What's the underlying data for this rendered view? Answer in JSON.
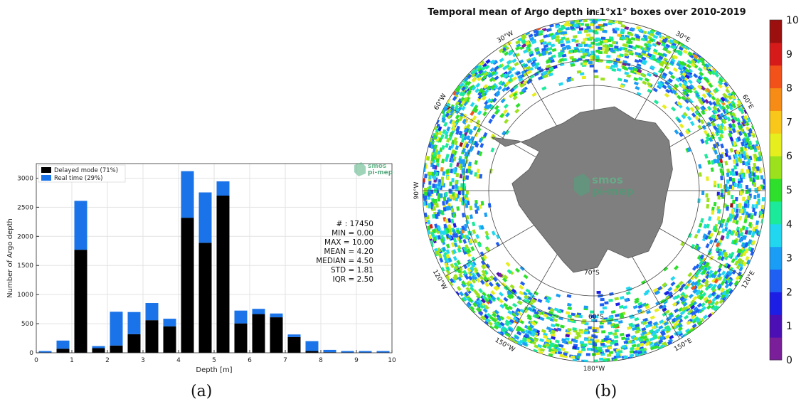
{
  "caption_a": "(a)",
  "caption_b": "(b)",
  "logo_text": [
    "smos",
    "pi-mep"
  ],
  "chart_data": [
    {
      "type": "bar",
      "stacked": true,
      "xlabel": "Depth [m]",
      "ylabel": "Number of Argo depth",
      "xlim": [
        0,
        10
      ],
      "ylim": [
        0,
        3250
      ],
      "xticks": [
        0,
        1,
        2,
        3,
        4,
        5,
        6,
        7,
        8,
        9,
        10
      ],
      "yticks": [
        0,
        500,
        1000,
        1500,
        2000,
        2500,
        3000
      ],
      "grid": true,
      "legend_position": "top-left",
      "bin_width": 0.5,
      "x": [
        0.25,
        0.75,
        1.25,
        1.75,
        2.25,
        2.75,
        3.25,
        3.75,
        4.25,
        4.75,
        5.25,
        5.75,
        6.25,
        6.75,
        7.25,
        7.75,
        8.25,
        8.75,
        9.25,
        9.75
      ],
      "series": [
        {
          "name": "Delayed mode (71%)",
          "color": "#000000",
          "values": [
            5,
            70,
            1770,
            80,
            125,
            320,
            560,
            455,
            2320,
            1890,
            2700,
            505,
            665,
            610,
            270,
            30,
            10,
            5,
            5,
            5
          ]
        },
        {
          "name": "Real time (29%)",
          "color": "#1a73e8",
          "values": [
            25,
            140,
            840,
            35,
            580,
            380,
            295,
            130,
            800,
            865,
            245,
            220,
            90,
            65,
            45,
            170,
            40,
            25,
            25,
            25
          ]
        }
      ],
      "stats_box": [
        "# : 17450",
        "MIN = 0.00",
        "MAX =  10.00",
        "MEAN = 4.20",
        "MEDIAN = 4.50",
        "STD = 1.81",
        "IQR = 2.50"
      ]
    },
    {
      "type": "heatmap",
      "projection": "south-polar-stereographic",
      "title": "Temporal mean of Argo depth in 1°x1° boxes over 2010-2019",
      "colorbar": {
        "min": 0,
        "max": 10,
        "ticks": [
          0,
          1,
          2,
          3,
          4,
          5,
          6,
          7,
          8,
          9,
          10
        ],
        "colors": [
          "#7a1e9a",
          "#4b0fb5",
          "#1c1ee6",
          "#1f5ff2",
          "#1a9ef5",
          "#21d7f0",
          "#1bea9a",
          "#2ee02c",
          "#9be21d",
          "#e6ee1e",
          "#f8c71a",
          "#f68c15",
          "#f2521a",
          "#d61a1a",
          "#9b0f0f"
        ]
      },
      "longitude_labels": [
        "0°E",
        "30°E",
        "60°E",
        "90°E",
        "120°E",
        "150°E",
        "180°W",
        "150°W",
        "120°W",
        "90°W",
        "60°W",
        "30°W"
      ],
      "latitude_labels": [
        "60°S",
        "70°S"
      ]
    }
  ]
}
